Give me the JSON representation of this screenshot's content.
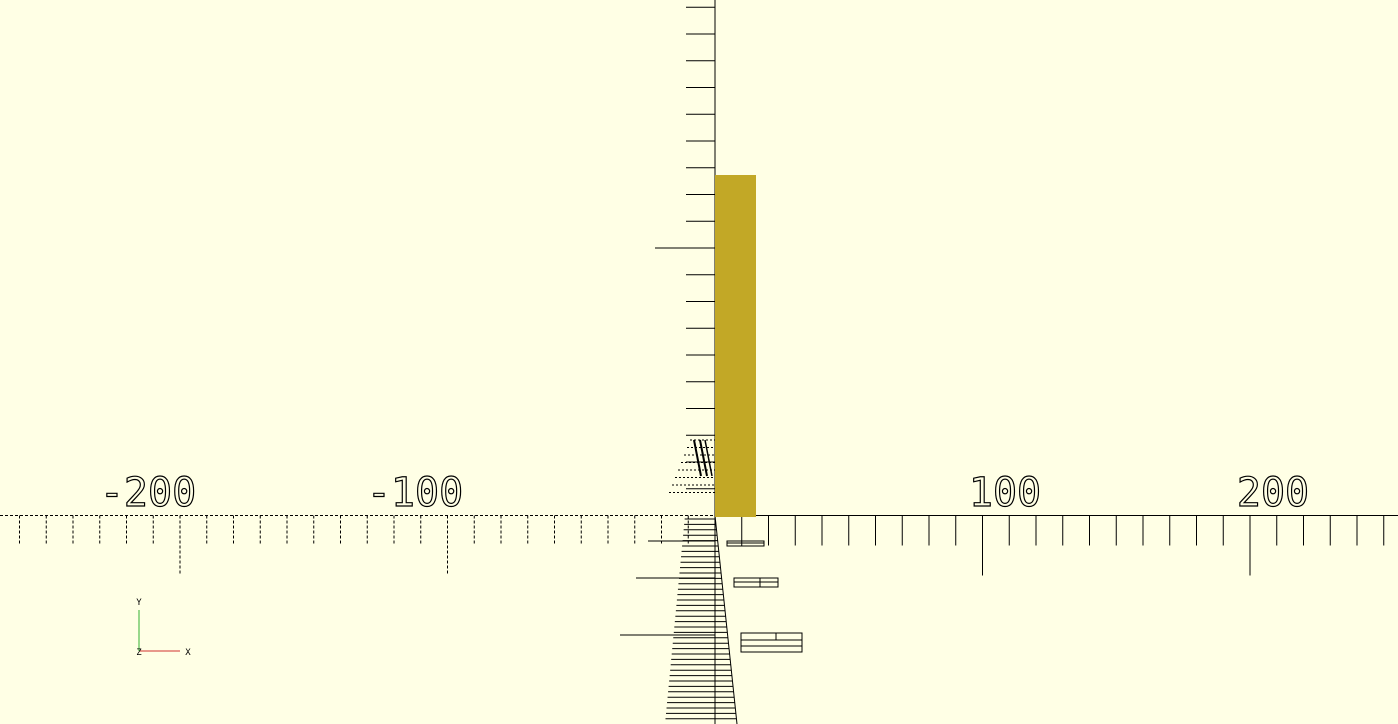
{
  "app": "OpenSCAD 3D viewport",
  "colors": {
    "background": "#ffffe5",
    "object": "#c2a826",
    "axis": "#000000",
    "x_axis_indicator": "#d03030",
    "y_axis_indicator": "#30b030",
    "z_axis_indicator": "#3030d0"
  },
  "x_axis": {
    "labels": [
      "-200",
      "-100",
      "100",
      "200"
    ],
    "label_values": [
      -200,
      -100,
      100,
      200
    ]
  },
  "axis_indicator": {
    "x_label": "X",
    "y_label": "Y",
    "z_label": "Z"
  },
  "object": {
    "shape": "cube",
    "description_icon": "cube-object"
  }
}
